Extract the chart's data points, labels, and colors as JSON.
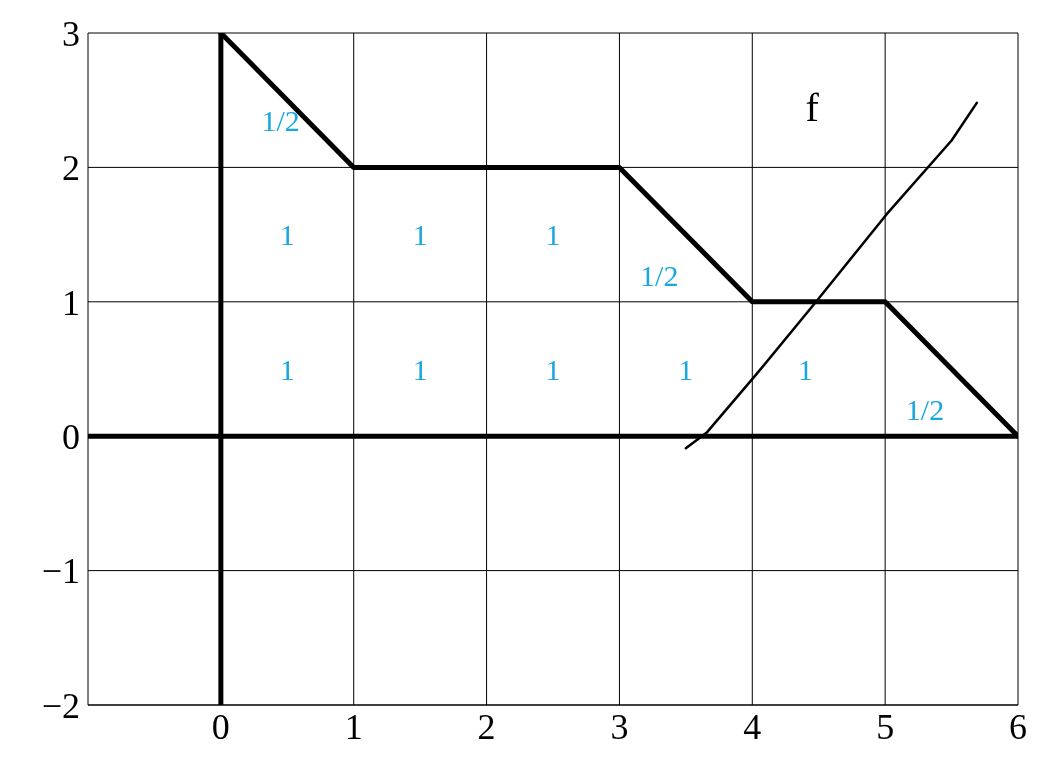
{
  "chart_data": {
    "type": "line",
    "series": [
      {
        "color": "#000000",
        "x": [
          0,
          1,
          3,
          4,
          5,
          6
        ],
        "values": [
          3,
          2,
          2,
          1,
          1,
          0
        ]
      },
      {
        "color": "#000000",
        "x": [
          3.5,
          3.66,
          4.03,
          4.48,
          5.01,
          5.5,
          5.69
        ],
        "values": [
          -0.09,
          0.03,
          0.46,
          1.0,
          1.65,
          2.2,
          2.48
        ]
      }
    ],
    "xlim": [
      -1,
      6
    ],
    "xticks": [
      0,
      1,
      2,
      3,
      4,
      5,
      6
    ],
    "ylim": [
      -2,
      3
    ],
    "yticks": [
      -2,
      -1,
      0,
      1,
      2,
      3
    ],
    "grid": true,
    "marker": "none",
    "line_style": "solid",
    "annotations": [
      "f",
      "1/2",
      "1",
      "1",
      "1",
      "1/2",
      "1",
      "1",
      "1",
      "1",
      "1",
      "1/2"
    ]
  }
}
